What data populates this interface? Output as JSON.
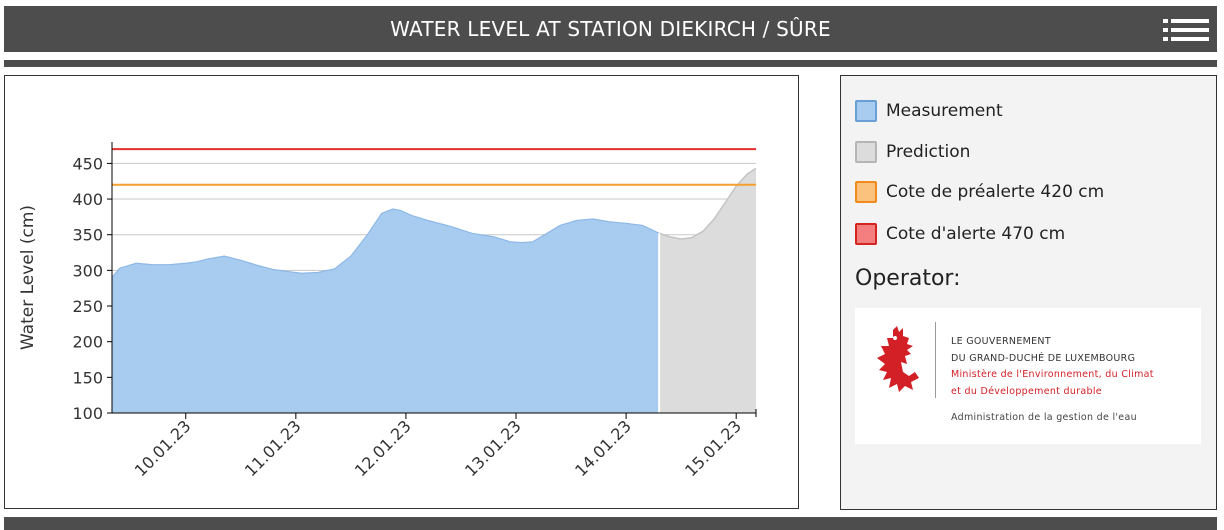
{
  "header": {
    "title": "WATER LEVEL AT STATION DIEKIRCH / SÛRE"
  },
  "colors": {
    "header_bg": "#4d4d4d",
    "measurement_fill": "#a8cbf0",
    "prediction_fill": "#dcdcdc",
    "prealert": "#f5a02a",
    "alert": "#e53030",
    "logo_red": "#d31f26"
  },
  "chart_data": {
    "type": "area",
    "title": "",
    "xlabel": "",
    "ylabel": "Water Level (cm)",
    "ylim": [
      100,
      480
    ],
    "yticks": [
      100,
      150,
      200,
      250,
      300,
      350,
      400,
      450
    ],
    "xlim": [
      9.33,
      15.18
    ],
    "xticks": [
      {
        "x": 10,
        "label": "10.01.23"
      },
      {
        "x": 11,
        "label": "11.01.23"
      },
      {
        "x": 12,
        "label": "12.01.23"
      },
      {
        "x": 13,
        "label": "13.01.23"
      },
      {
        "x": 14,
        "label": "14.01.23"
      },
      {
        "x": 15,
        "label": "15.01.23"
      }
    ],
    "grid": true,
    "series": [
      {
        "name": "Measurement",
        "x": [
          9.33,
          9.4,
          9.55,
          9.7,
          9.85,
          10.0,
          10.1,
          10.2,
          10.35,
          10.5,
          10.65,
          10.8,
          10.95,
          11.05,
          11.2,
          11.35,
          11.5,
          11.65,
          11.78,
          11.88,
          11.95,
          12.05,
          12.2,
          12.4,
          12.6,
          12.8,
          12.95,
          13.05,
          13.15,
          13.25,
          13.4,
          13.55,
          13.7,
          13.85,
          14.0,
          14.15,
          14.3
        ],
        "values": [
          290,
          303,
          310,
          308,
          308,
          310,
          312,
          316,
          320,
          314,
          307,
          301,
          298,
          296,
          297,
          302,
          320,
          350,
          380,
          386,
          384,
          377,
          370,
          362,
          352,
          347,
          340,
          339,
          340,
          349,
          363,
          370,
          372,
          368,
          366,
          363,
          352
        ]
      },
      {
        "name": "Prediction",
        "x": [
          14.3,
          14.4,
          14.5,
          14.6,
          14.7,
          14.8,
          14.9,
          15.0,
          15.1,
          15.18
        ],
        "values": [
          352,
          347,
          344,
          346,
          355,
          372,
          395,
          418,
          435,
          443
        ]
      }
    ],
    "thresholds": [
      {
        "name": "Cote de préalerte 420 cm",
        "value": 420,
        "color": "#f5a02a"
      },
      {
        "name": "Cote d'alerte 470 cm",
        "value": 470,
        "color": "#e53030"
      }
    ]
  },
  "legend": {
    "items": [
      {
        "label": "Measurement",
        "fill": "#a8cbf0",
        "stroke": "#6a9fd6"
      },
      {
        "label": "Prediction",
        "fill": "#dcdcdc",
        "stroke": "#b5b5b5"
      },
      {
        "label": "Cote de préalerte 420 cm",
        "fill": "#fbc27e",
        "stroke": "#f08a1c"
      },
      {
        "label": "Cote d'alerte 470 cm",
        "fill": "#f57f7f",
        "stroke": "#d42525"
      }
    ],
    "operator_label": "Operator:"
  },
  "logo": {
    "line1": "LE GOUVERNEMENT",
    "line2": "DU GRAND-DUCHÉ DE LUXEMBOURG",
    "line3": "Ministère de l'Environnement, du Climat",
    "line4": "et du Développement durable",
    "line5": "Administration de la gestion de l'eau"
  }
}
